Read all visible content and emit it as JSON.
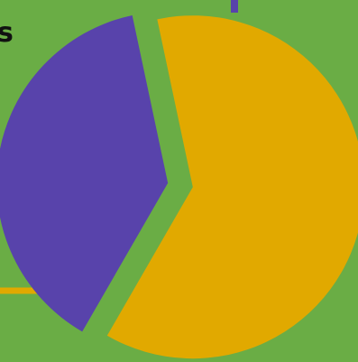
{
  "colors": {
    "background": "#6aad45",
    "purple": "#5843ab",
    "yellow": "#e1a900"
  },
  "visible_text": {
    "left_fragment": "s"
  },
  "chart_data": {
    "type": "pie",
    "title": "",
    "exploded": true,
    "slices": [
      {
        "value": 38,
        "color": "#5843ab",
        "start_angle_deg": 120,
        "end_angle_deg": 258
      },
      {
        "value": 62,
        "color": "#e1a900",
        "start_angle_deg": 258,
        "end_angle_deg": 480
      }
    ],
    "leader_lines": [
      {
        "slice": 0,
        "direction": "up"
      },
      {
        "slice": 1,
        "direction": "left"
      }
    ]
  }
}
